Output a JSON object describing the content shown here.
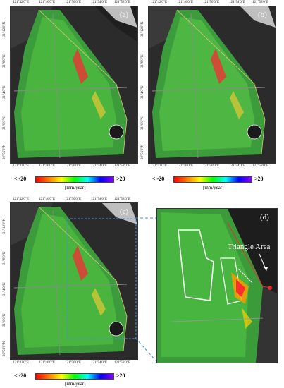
{
  "panels": [
    {
      "label": "(a)"
    },
    {
      "label": "(b)"
    },
    {
      "label": "(c)"
    },
    {
      "label": "(d)"
    }
  ],
  "lon_ticks": [
    "121°42'0\"E",
    "121°46'0\"E",
    "121°50'0\"E",
    "121°54'0\"E",
    "121°58'0\"E"
  ],
  "lat_ticks": [
    "31°12'0\"N",
    "31°8'0\"N",
    "31°4'0\"N",
    "31°0'0\"N",
    "30°56'0\"N"
  ],
  "colorbar": {
    "min_label": "< -20",
    "max_label": ">20",
    "unit": "[mm/year]"
  },
  "annotation": "Triangle Area",
  "colors": {
    "accent_line": "#4a90d9",
    "outline": "#d8c878",
    "highlight_outline": "#ffffff",
    "red_outline": "#e03030"
  }
}
